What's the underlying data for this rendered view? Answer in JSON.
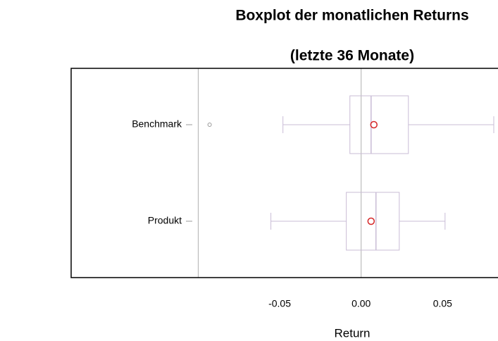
{
  "chart_data": {
    "type": "boxplot",
    "orientation": "horizontal",
    "title": "Boxplot der monatlichen Returns",
    "subtitle": "(letzte 36 Monate)",
    "x_label": "Return",
    "categories": [
      "Benchmark",
      "Produkt"
    ],
    "boxes": [
      {
        "whisker_low": -0.048,
        "q1": -0.0069,
        "median": 0.0061,
        "q3": 0.029,
        "whisker_high": 0.0814,
        "mean": 0.0078,
        "outliers": [
          -0.093
        ]
      },
      {
        "whisker_low": -0.0554,
        "q1": -0.0091,
        "median": 0.0091,
        "q3": 0.0234,
        "whisker_high": 0.0515,
        "mean": 0.0061,
        "outliers": []
      }
    ],
    "box_color": "#c9bcd6",
    "mean_color": "#d62728",
    "outlier_color": "#999999",
    "reference_lines": [
      -0.1,
      0
    ],
    "xlim": [
      -0.178,
      0.084
    ],
    "xticks": [
      -0.05,
      {
        "value": 0,
        "label": "0.00"
      },
      0.05
    ]
  }
}
